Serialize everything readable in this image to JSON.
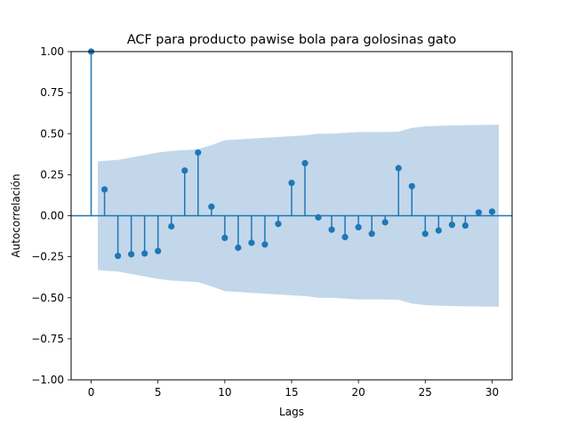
{
  "chart_data": {
    "type": "stem",
    "title": "ACF para producto pawise bola para golosinas gato",
    "xlabel": "Lags",
    "ylabel": "Autocorrelación",
    "xlim": [
      -1.5,
      31.5
    ],
    "ylim": [
      -1.0,
      1.0
    ],
    "xticks": [
      0,
      5,
      10,
      15,
      20,
      25,
      30
    ],
    "yticks": [
      -1.0,
      -0.75,
      -0.5,
      -0.25,
      0.0,
      0.25,
      0.5,
      0.75,
      1.0
    ],
    "xtick_labels": [
      "0",
      "5",
      "10",
      "15",
      "20",
      "25",
      "30"
    ],
    "ytick_labels": [
      "−1.00",
      "−0.75",
      "−0.50",
      "−0.25",
      "0.00",
      "0.25",
      "0.50",
      "0.75",
      "1.00"
    ],
    "series": [
      {
        "lags": [
          0,
          1,
          2,
          3,
          4,
          5,
          6,
          7,
          8,
          9,
          10,
          11,
          12,
          13,
          14,
          15,
          16,
          17,
          18,
          19,
          20,
          21,
          22,
          23,
          24,
          25,
          26,
          27,
          28,
          29,
          30
        ],
        "values": [
          1.0,
          0.16,
          -0.245,
          -0.235,
          -0.23,
          -0.215,
          -0.065,
          0.275,
          0.385,
          0.055,
          -0.135,
          -0.195,
          -0.165,
          -0.175,
          -0.05,
          0.2,
          0.32,
          -0.01,
          -0.085,
          -0.13,
          -0.07,
          -0.11,
          -0.04,
          0.29,
          0.18,
          -0.11,
          -0.09,
          -0.055,
          -0.06,
          0.02,
          0.025
        ]
      }
    ],
    "confidence_band": {
      "lags": [
        0.5,
        1,
        2,
        3,
        4,
        5,
        6,
        7,
        8,
        9,
        10,
        11,
        12,
        13,
        14,
        15,
        16,
        17,
        18,
        19,
        20,
        21,
        22,
        23,
        24,
        25,
        26,
        27,
        28,
        29,
        30.5
      ],
      "upper": [
        0.33,
        0.335,
        0.34,
        0.355,
        0.37,
        0.385,
        0.395,
        0.4,
        0.405,
        0.43,
        0.46,
        0.465,
        0.47,
        0.475,
        0.48,
        0.485,
        0.49,
        0.5,
        0.5,
        0.505,
        0.51,
        0.51,
        0.51,
        0.512,
        0.535,
        0.545,
        0.548,
        0.55,
        0.552,
        0.553,
        0.555
      ]
    },
    "colors": {
      "stem": "#1f77b4",
      "band": "#c3d7eb",
      "zero_line": "#1f77b4"
    },
    "grid": false
  }
}
